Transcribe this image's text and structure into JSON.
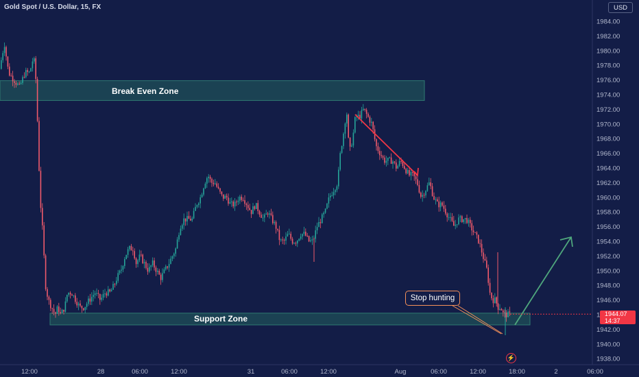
{
  "header": {
    "symbol_title": "Gold Spot / U.S. Dollar, 15, FX",
    "currency_button": "USD"
  },
  "last_price": {
    "price": "1944.07",
    "countdown": "14:37"
  },
  "annotations": {
    "break_even_zone": {
      "label": "Break Even Zone",
      "low": 1973.2,
      "high": 1975.9
    },
    "support_zone": {
      "label": "Support Zone",
      "low": 1942.6,
      "high": 1944.2
    },
    "callout": "Stop hunting"
  },
  "icons": {
    "bolt": "lightning-icon"
  },
  "colors": {
    "background": "#131d47",
    "up_candle": "#26a69a",
    "down_candle": "#f05a6b",
    "zone_fill": "#1f4f57",
    "zone_border": "#2f7a72",
    "down_arrow": "#f23645",
    "up_arrow": "#4fa77d",
    "callout_border": "#f7925a"
  },
  "chart_data": {
    "type": "candlestick",
    "ylim": [
      1937,
      1987
    ],
    "y_ticks": [
      "1984.00",
      "1982.00",
      "1980.00",
      "1978.00",
      "1976.00",
      "1974.00",
      "1972.00",
      "1970.00",
      "1968.00",
      "1966.00",
      "1964.00",
      "1962.00",
      "1960.00",
      "1958.00",
      "1956.00",
      "1954.00",
      "1952.00",
      "1950.00",
      "1948.00",
      "1946.00",
      "1944.00",
      "1942.00",
      "1940.00",
      "1938.00"
    ],
    "x_ticks": [
      "12:00",
      "28",
      "06:00",
      "12:00",
      "31",
      "06:00",
      "12:00",
      "Aug",
      "06:00",
      "12:00",
      "18:00",
      "2",
      "06:00"
    ],
    "path_points": [
      [
        0,
        1977
      ],
      [
        8,
        1981
      ],
      [
        14,
        1977
      ],
      [
        22,
        1976
      ],
      [
        30,
        1975
      ],
      [
        38,
        1977
      ],
      [
        45,
        1977
      ],
      [
        50,
        1979
      ],
      [
        53,
        1978
      ],
      [
        56,
        1971
      ],
      [
        60,
        1960
      ],
      [
        64,
        1955
      ],
      [
        68,
        1948
      ],
      [
        72,
        1946
      ],
      [
        77,
        1945
      ],
      [
        82,
        1944
      ],
      [
        86,
        1945
      ],
      [
        90,
        1944
      ],
      [
        96,
        1945
      ],
      [
        100,
        1947
      ],
      [
        106,
        1947
      ],
      [
        112,
        1946
      ],
      [
        118,
        1945
      ],
      [
        124,
        1945
      ],
      [
        132,
        1946
      ],
      [
        140,
        1947
      ],
      [
        148,
        1946
      ],
      [
        155,
        1947
      ],
      [
        162,
        1947
      ],
      [
        168,
        1948
      ],
      [
        172,
        1949
      ],
      [
        178,
        1950
      ],
      [
        184,
        1952
      ],
      [
        190,
        1953
      ],
      [
        196,
        1953
      ],
      [
        200,
        1951
      ],
      [
        206,
        1952
      ],
      [
        212,
        1951
      ],
      [
        218,
        1950
      ],
      [
        224,
        1951
      ],
      [
        230,
        1950
      ],
      [
        236,
        1949
      ],
      [
        242,
        1950
      ],
      [
        248,
        1951
      ],
      [
        253,
        1952
      ],
      [
        258,
        1953
      ],
      [
        264,
        1956
      ],
      [
        270,
        1957
      ],
      [
        276,
        1957
      ],
      [
        282,
        1957
      ],
      [
        288,
        1959
      ],
      [
        294,
        1960
      ],
      [
        300,
        1962
      ],
      [
        305,
        1963
      ],
      [
        310,
        1962
      ],
      [
        315,
        1962
      ],
      [
        320,
        1961
      ],
      [
        326,
        1960
      ],
      [
        332,
        1960
      ],
      [
        338,
        1959
      ],
      [
        344,
        1959
      ],
      [
        350,
        1960
      ],
      [
        356,
        1960
      ],
      [
        362,
        1959
      ],
      [
        368,
        1958
      ],
      [
        374,
        1959
      ],
      [
        380,
        1958
      ],
      [
        386,
        1957
      ],
      [
        392,
        1958
      ],
      [
        398,
        1957
      ],
      [
        404,
        1956
      ],
      [
        410,
        1954
      ],
      [
        416,
        1954
      ],
      [
        422,
        1955
      ],
      [
        428,
        1954
      ],
      [
        434,
        1954
      ],
      [
        440,
        1955
      ],
      [
        446,
        1955
      ],
      [
        452,
        1954
      ],
      [
        458,
        1954
      ],
      [
        464,
        1956
      ],
      [
        470,
        1957
      ],
      [
        476,
        1958
      ],
      [
        482,
        1960
      ],
      [
        488,
        1961
      ],
      [
        494,
        1962
      ],
      [
        498,
        1966
      ],
      [
        503,
        1969
      ],
      [
        507,
        1972
      ],
      [
        511,
        1966
      ],
      [
        516,
        1968
      ],
      [
        520,
        1971
      ],
      [
        526,
        1971
      ],
      [
        532,
        1972
      ],
      [
        538,
        1971
      ],
      [
        544,
        1970
      ],
      [
        550,
        1967
      ],
      [
        556,
        1966
      ],
      [
        562,
        1965
      ],
      [
        568,
        1965
      ],
      [
        574,
        1965
      ],
      [
        580,
        1964
      ],
      [
        586,
        1965
      ],
      [
        592,
        1964
      ],
      [
        598,
        1963
      ],
      [
        604,
        1963
      ],
      [
        610,
        1962
      ],
      [
        616,
        1960
      ],
      [
        622,
        1961
      ],
      [
        628,
        1962
      ],
      [
        634,
        1960
      ],
      [
        640,
        1959
      ],
      [
        646,
        1959
      ],
      [
        652,
        1958
      ],
      [
        658,
        1957
      ],
      [
        664,
        1956
      ],
      [
        670,
        1957
      ],
      [
        676,
        1957
      ],
      [
        682,
        1957
      ],
      [
        688,
        1956
      ],
      [
        694,
        1955
      ],
      [
        700,
        1954
      ],
      [
        706,
        1952
      ],
      [
        712,
        1950
      ],
      [
        716,
        1947
      ],
      [
        720,
        1946
      ],
      [
        724,
        1946
      ],
      [
        728,
        1945
      ],
      [
        732,
        1945
      ],
      [
        736,
        1944
      ],
      [
        740,
        1944
      ],
      [
        744,
        1944
      ]
    ]
  }
}
